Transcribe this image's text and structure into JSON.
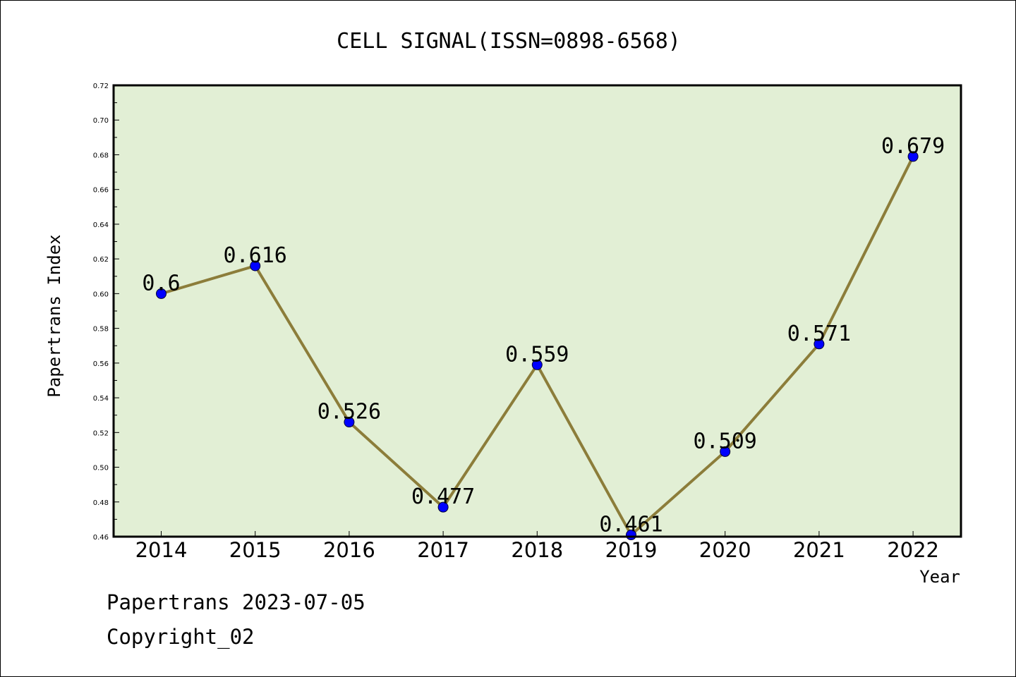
{
  "chart_data": {
    "type": "line",
    "title": "CELL SIGNAL(ISSN=0898-6568)",
    "xlabel": "Year",
    "ylabel": "Papertrans Index",
    "categories": [
      "2014",
      "2015",
      "2016",
      "2017",
      "2018",
      "2019",
      "2020",
      "2021",
      "2022"
    ],
    "series": [
      {
        "values": [
          0.6,
          0.616,
          0.526,
          0.477,
          0.559,
          0.461,
          0.509,
          0.571,
          0.679
        ]
      }
    ],
    "data_labels": [
      "0.6",
      "0.616",
      "0.526",
      "0.477",
      "0.559",
      "0.461",
      "0.509",
      "0.571",
      "0.679"
    ],
    "ylim": [
      0.46,
      0.72
    ],
    "y_ticks": [
      "0.46",
      "0.48",
      "0.50",
      "0.52",
      "0.54",
      "0.56",
      "0.58",
      "0.60",
      "0.62",
      "0.64",
      "0.66",
      "0.68",
      "0.70",
      "0.72"
    ],
    "grid": false,
    "colors": {
      "plot_background": "#e2efd5",
      "line": "#8c7d3a",
      "marker": "#0000ff"
    }
  },
  "footer": {
    "line1": "Papertrans 2023-07-05",
    "line2": "Copyright_02"
  }
}
